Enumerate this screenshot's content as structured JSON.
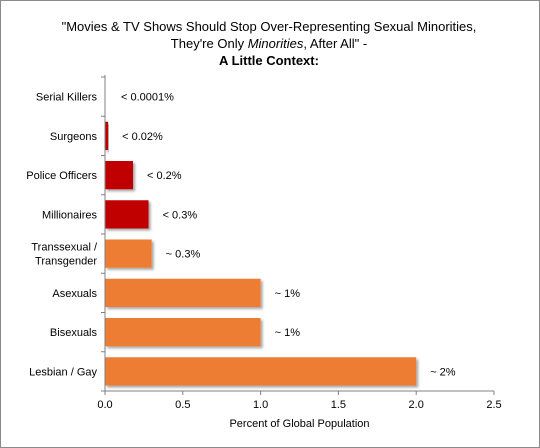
{
  "chart_data": {
    "type": "bar",
    "orientation": "horizontal",
    "title": {
      "line1": "\"Movies & TV Shows Should Stop Over-Representing Sexual Minorities,",
      "line2_before": "They're Only ",
      "line2_italic": "Minorities",
      "line2_after": ", After All\" -",
      "line3": "A Little Context:"
    },
    "xlabel": "Percent of Global Population",
    "xlim": [
      0,
      2.5
    ],
    "xticks": [
      "0.0",
      "0.5",
      "1.0",
      "1.5",
      "2.0",
      "2.5"
    ],
    "xtick_values": [
      0,
      0.5,
      1.0,
      1.5,
      2.0,
      2.5
    ],
    "bars": [
      {
        "category": "Serial Killers",
        "value": 0.0001,
        "label": "< 0.0001%",
        "color": "#c00000"
      },
      {
        "category": "Surgeons",
        "value": 0.02,
        "label": "< 0.02%",
        "color": "#c00000"
      },
      {
        "category": "Police Officers",
        "value": 0.18,
        "label": "< 0.2%",
        "color": "#c00000"
      },
      {
        "category": "Millionaires",
        "value": 0.28,
        "label": "< 0.3%",
        "color": "#c00000"
      },
      {
        "category": "Transsexual / Transgender",
        "category_lines": [
          "Transsexual /",
          "Transgender"
        ],
        "value": 0.3,
        "label": "~ 0.3%",
        "color": "#ed7d31"
      },
      {
        "category": "Asexuals",
        "value": 1.0,
        "label": "~ 1%",
        "color": "#ed7d31"
      },
      {
        "category": "Bisexuals",
        "value": 1.0,
        "label": "~ 1%",
        "color": "#ed7d31"
      },
      {
        "category": "Lesbian / Gay",
        "value": 2.0,
        "label": "~ 2%",
        "color": "#ed7d31"
      }
    ],
    "grid": false,
    "legend": "none"
  }
}
